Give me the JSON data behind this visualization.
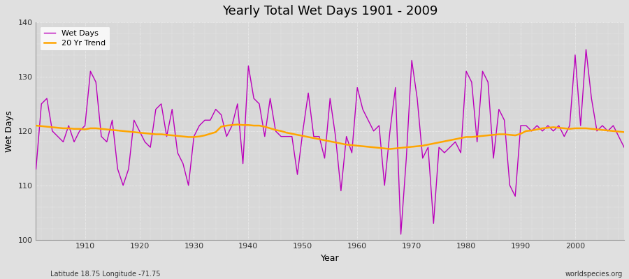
{
  "title": "Yearly Total Wet Days 1901 - 2009",
  "xlabel": "Year",
  "ylabel": "Wet Days",
  "ylim": [
    100,
    140
  ],
  "xlim": [
    1901,
    2009
  ],
  "yticks": [
    100,
    110,
    120,
    130,
    140
  ],
  "xticks": [
    1910,
    1920,
    1930,
    1940,
    1950,
    1960,
    1970,
    1980,
    1990,
    2000
  ],
  "wet_days_color": "#bb00bb",
  "trend_color": "#ffa500",
  "fig_bg_color": "#e0e0e0",
  "plot_bg_color": "#d8d8d8",
  "legend_labels": [
    "Wet Days",
    "20 Yr Trend"
  ],
  "footnote_left": "Latitude 18.75 Longitude -71.75",
  "footnote_right": "worldspecies.org",
  "years": [
    1901,
    1902,
    1903,
    1904,
    1905,
    1906,
    1907,
    1908,
    1909,
    1910,
    1911,
    1912,
    1913,
    1914,
    1915,
    1916,
    1917,
    1918,
    1919,
    1920,
    1921,
    1922,
    1923,
    1924,
    1925,
    1926,
    1927,
    1928,
    1929,
    1930,
    1931,
    1932,
    1933,
    1934,
    1935,
    1936,
    1937,
    1938,
    1939,
    1940,
    1941,
    1942,
    1943,
    1944,
    1945,
    1946,
    1947,
    1948,
    1949,
    1950,
    1951,
    1952,
    1953,
    1954,
    1955,
    1956,
    1957,
    1958,
    1959,
    1960,
    1961,
    1962,
    1963,
    1964,
    1965,
    1966,
    1967,
    1968,
    1969,
    1970,
    1971,
    1972,
    1973,
    1974,
    1975,
    1976,
    1977,
    1978,
    1979,
    1980,
    1981,
    1982,
    1983,
    1984,
    1985,
    1986,
    1987,
    1988,
    1989,
    1990,
    1991,
    1992,
    1993,
    1994,
    1995,
    1996,
    1997,
    1998,
    1999,
    2000,
    2001,
    2002,
    2003,
    2004,
    2005,
    2006,
    2007,
    2008,
    2009
  ],
  "wet_days": [
    113,
    125,
    126,
    120,
    119,
    118,
    121,
    118,
    120,
    121,
    131,
    129,
    119,
    118,
    122,
    113,
    110,
    113,
    122,
    120,
    118,
    117,
    124,
    125,
    119,
    124,
    116,
    114,
    110,
    119,
    121,
    122,
    122,
    124,
    123,
    119,
    121,
    125,
    114,
    132,
    126,
    125,
    119,
    126,
    120,
    119,
    119,
    119,
    112,
    120,
    127,
    119,
    119,
    115,
    126,
    119,
    109,
    119,
    116,
    128,
    124,
    122,
    120,
    121,
    110,
    120,
    128,
    101,
    115,
    133,
    126,
    115,
    117,
    103,
    117,
    116,
    117,
    118,
    116,
    131,
    129,
    118,
    131,
    129,
    115,
    124,
    122,
    110,
    108,
    121,
    121,
    120,
    121,
    120,
    121,
    120,
    121,
    119,
    121,
    134,
    121,
    135,
    126,
    120,
    121,
    120,
    121,
    119,
    117
  ],
  "trend": [
    121.0,
    120.9,
    120.8,
    120.7,
    120.6,
    120.5,
    120.5,
    120.4,
    120.4,
    120.3,
    120.5,
    120.5,
    120.4,
    120.3,
    120.2,
    120.1,
    120.0,
    119.9,
    119.8,
    119.7,
    119.6,
    119.5,
    119.4,
    119.4,
    119.3,
    119.2,
    119.1,
    119.0,
    118.9,
    118.9,
    119.0,
    119.2,
    119.5,
    119.8,
    120.8,
    121.0,
    121.1,
    121.2,
    121.1,
    121.1,
    121.0,
    121.0,
    120.8,
    120.5,
    120.2,
    120.0,
    119.7,
    119.5,
    119.3,
    119.1,
    118.9,
    118.7,
    118.5,
    118.3,
    118.1,
    117.9,
    117.7,
    117.5,
    117.4,
    117.3,
    117.2,
    117.1,
    117.0,
    116.9,
    116.8,
    116.7,
    116.8,
    116.9,
    117.0,
    117.1,
    117.2,
    117.3,
    117.5,
    117.7,
    117.9,
    118.1,
    118.3,
    118.5,
    118.7,
    118.9,
    118.9,
    119.0,
    119.1,
    119.2,
    119.3,
    119.4,
    119.4,
    119.3,
    119.2,
    119.5,
    120.0,
    120.1,
    120.3,
    120.5,
    120.6,
    120.7,
    120.6,
    120.5,
    120.4,
    120.5,
    120.5,
    120.5,
    120.4,
    120.3,
    120.2,
    120.1,
    120.0,
    119.9,
    119.8
  ]
}
